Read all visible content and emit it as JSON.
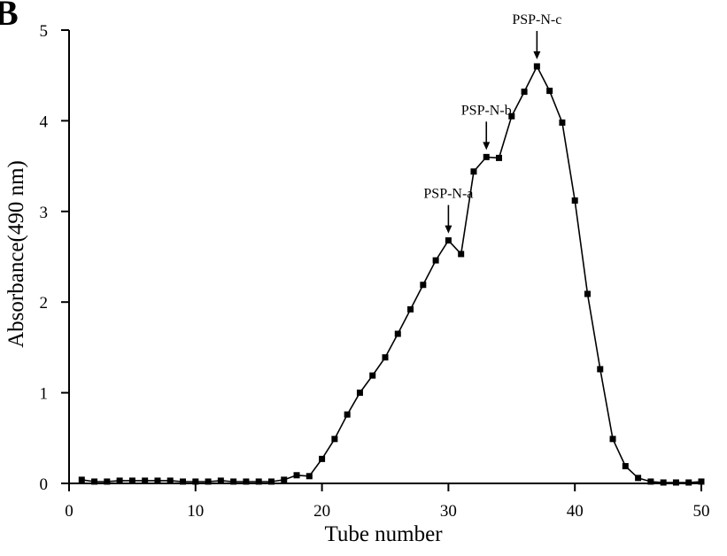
{
  "panel_label": "B",
  "chart_data": {
    "type": "line",
    "xlabel": "Tube number",
    "ylabel": "Absorbance(490 nm)",
    "xlim": [
      0,
      50
    ],
    "ylim": [
      0,
      5
    ],
    "xticks": [
      0,
      10,
      20,
      30,
      40,
      50
    ],
    "yticks": [
      0,
      1,
      2,
      3,
      4,
      5
    ],
    "grid": false,
    "marker": "square",
    "color": "#000000",
    "series": [
      {
        "x": [
          1,
          2,
          3,
          4,
          5,
          6,
          7,
          8,
          9,
          10,
          11,
          12,
          13,
          14,
          15,
          16,
          17,
          18,
          19,
          20,
          21,
          22,
          23,
          24,
          25,
          26,
          27,
          28,
          29,
          30,
          31,
          32,
          33,
          34,
          35,
          36,
          37,
          38,
          39,
          40,
          41,
          42,
          43,
          44,
          45,
          46,
          47,
          48,
          49,
          50
        ],
        "values": [
          0.04,
          0.02,
          0.02,
          0.03,
          0.03,
          0.03,
          0.03,
          0.03,
          0.02,
          0.02,
          0.02,
          0.03,
          0.02,
          0.02,
          0.02,
          0.02,
          0.04,
          0.09,
          0.08,
          0.27,
          0.49,
          0.76,
          1.0,
          1.19,
          1.39,
          1.65,
          1.92,
          2.19,
          2.46,
          2.68,
          2.53,
          3.44,
          3.6,
          3.59,
          4.05,
          4.32,
          4.6,
          4.33,
          3.98,
          3.12,
          2.09,
          1.26,
          0.49,
          0.19,
          0.06,
          0.02,
          0.01,
          0.01,
          0.01,
          0.02
        ]
      }
    ],
    "annotations": [
      {
        "label": "PSP-N-a",
        "x": 30,
        "y": 2.68
      },
      {
        "label": "PSP-N-b",
        "x": 33,
        "y": 3.6
      },
      {
        "label": "PSP-N-c",
        "x": 37,
        "y": 4.6
      }
    ]
  }
}
